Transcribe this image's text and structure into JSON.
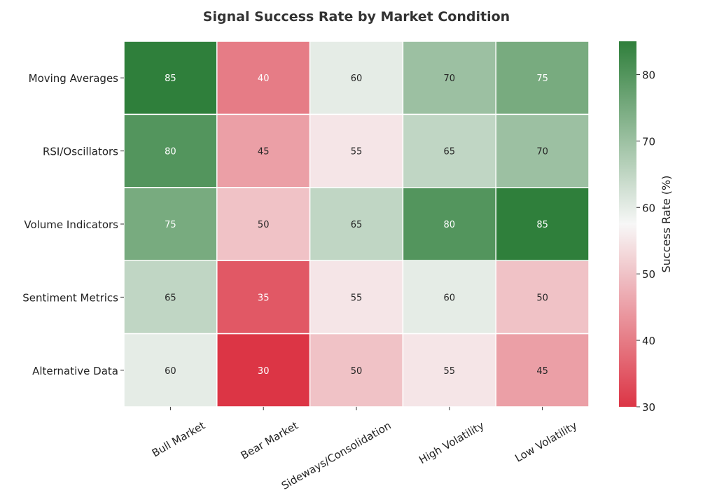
{
  "chart_data": {
    "type": "heatmap",
    "title": "Signal Success Rate by Market Condition",
    "columns": [
      "Bull Market",
      "Bear Market",
      "Sideways/Consolidation",
      "High Volatility",
      "Low Volatility"
    ],
    "rows": [
      "Moving Averages",
      "RSI/Oscillators",
      "Volume Indicators",
      "Sentiment Metrics",
      "Alternative Data"
    ],
    "values": [
      [
        85,
        40,
        60,
        70,
        75
      ],
      [
        80,
        45,
        55,
        65,
        70
      ],
      [
        75,
        50,
        65,
        80,
        85
      ],
      [
        65,
        35,
        55,
        60,
        50
      ],
      [
        60,
        30,
        50,
        55,
        45
      ]
    ],
    "colorbar": {
      "label": "Success Rate (%)",
      "range": [
        30,
        85
      ],
      "ticks": [
        30,
        40,
        50,
        60,
        70,
        80
      ],
      "colors": {
        "low": "#dc3545",
        "mid": "#f7f7f7",
        "high": "#2f7f3b"
      },
      "mid_value": 57.5
    },
    "xlabel": "",
    "ylabel": ""
  }
}
